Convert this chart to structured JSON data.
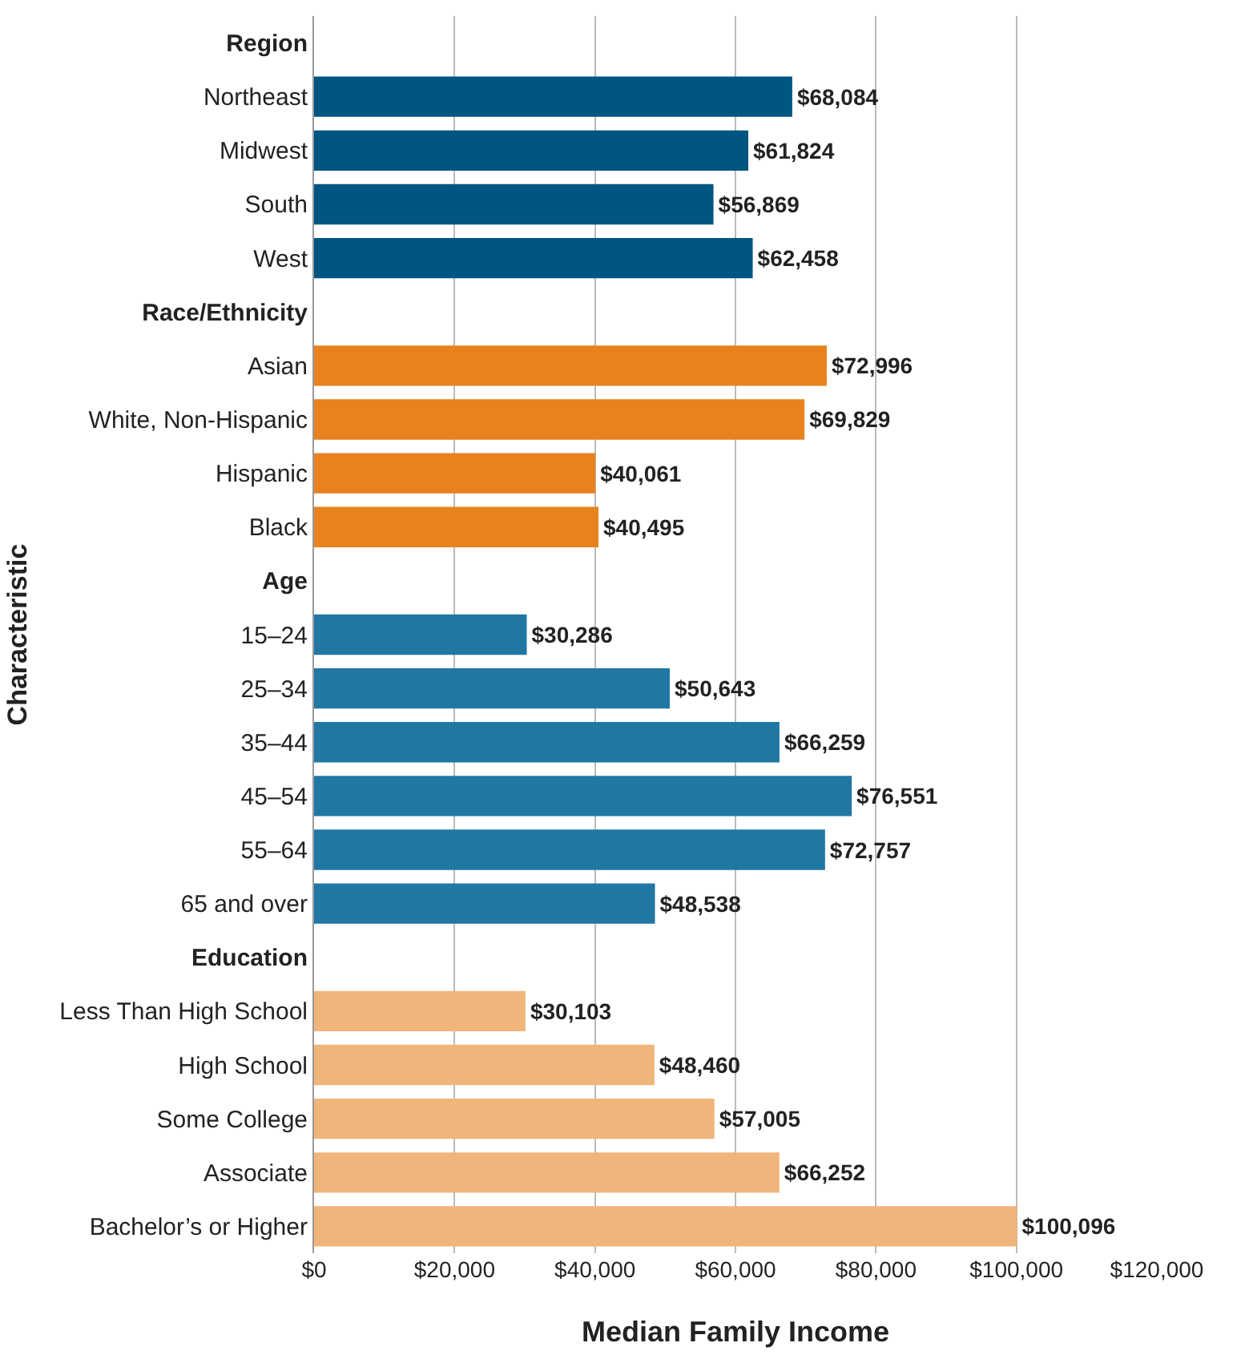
{
  "chart_data": {
    "type": "bar",
    "orientation": "horizontal",
    "xlabel": "Median Family Income",
    "ylabel": "Characteristic",
    "categories": [
      "Region",
      "Northeast",
      "Midwest",
      "South",
      "West",
      "Race/Ethnicity",
      "Asian",
      "White, Non-Hispanic",
      "Hispanic",
      "Black",
      "Age",
      "15–24",
      "25–34",
      "35–44",
      "45–54",
      "55–64",
      "65 and over",
      "Education",
      "Less Than High School",
      "High School",
      "Some College",
      "Associate",
      "Bachelor’s or Higher"
    ],
    "values": [
      null,
      68084,
      61824,
      56869,
      62458,
      null,
      72996,
      69829,
      40061,
      40495,
      null,
      30286,
      50643,
      66259,
      76551,
      72757,
      48538,
      null,
      30103,
      48460,
      57005,
      66252,
      100096
    ],
    "colors": [
      null,
      "#005582",
      "#005582",
      "#005582",
      "#005582",
      null,
      "#e8821e",
      "#e8821e",
      "#e8821e",
      "#e8821e",
      null,
      "#2077a4",
      "#2077a4",
      "#2077a4",
      "#2077a4",
      "#2077a4",
      "#2077a4",
      null,
      "#f0b57b",
      "#f0b57b",
      "#f0b57b",
      "#f0b57b",
      "#f0b57b"
    ],
    "value_labels": [
      null,
      "$68,084",
      "$61,824",
      "$56,869",
      "$62,458",
      null,
      "$72,996",
      "$69,829",
      "$40,061",
      "$40,495",
      null,
      "$30,286",
      "$50,643",
      "$66,259",
      "$76,551",
      "$72,757",
      "$48,538",
      null,
      "$30,103",
      "$48,460",
      "$57,005",
      "$66,252",
      "$100,096"
    ],
    "xlim": [
      0,
      120000
    ],
    "xticks": [
      {
        "value": 0,
        "label": "$0"
      },
      {
        "value": 20000,
        "label": "$20,000"
      },
      {
        "value": 40000,
        "label": "$40,000"
      },
      {
        "value": 60000,
        "label": "$60,000"
      },
      {
        "value": 80000,
        "label": "$80,000"
      },
      {
        "value": 100000,
        "label": "$100,000"
      },
      {
        "value": 120000,
        "label": "$120,000"
      }
    ],
    "grid": "x"
  }
}
